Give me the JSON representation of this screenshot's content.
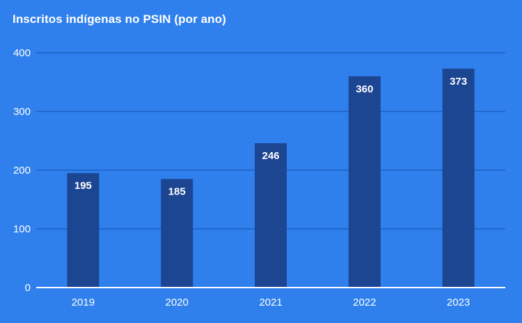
{
  "chart_data": {
    "type": "bar",
    "title": "Inscritos indígenas no PSIN (por ano)",
    "categories": [
      "2019",
      "2020",
      "2021",
      "2022",
      "2023"
    ],
    "values": [
      195,
      185,
      246,
      360,
      373
    ],
    "data_labels": [
      "195",
      "185",
      "246",
      "360",
      "373"
    ],
    "y_ticks": [
      "0",
      "100",
      "200",
      "300",
      "400"
    ],
    "ylim": [
      0,
      400
    ],
    "xlabel": "",
    "ylabel": "",
    "grid": true,
    "legend": "none",
    "colors": {
      "background": "#2f80ed",
      "bar": "#1c4592",
      "grid": "#1f5fc0",
      "axis": "#ffffff",
      "text": "#ffffff"
    }
  }
}
